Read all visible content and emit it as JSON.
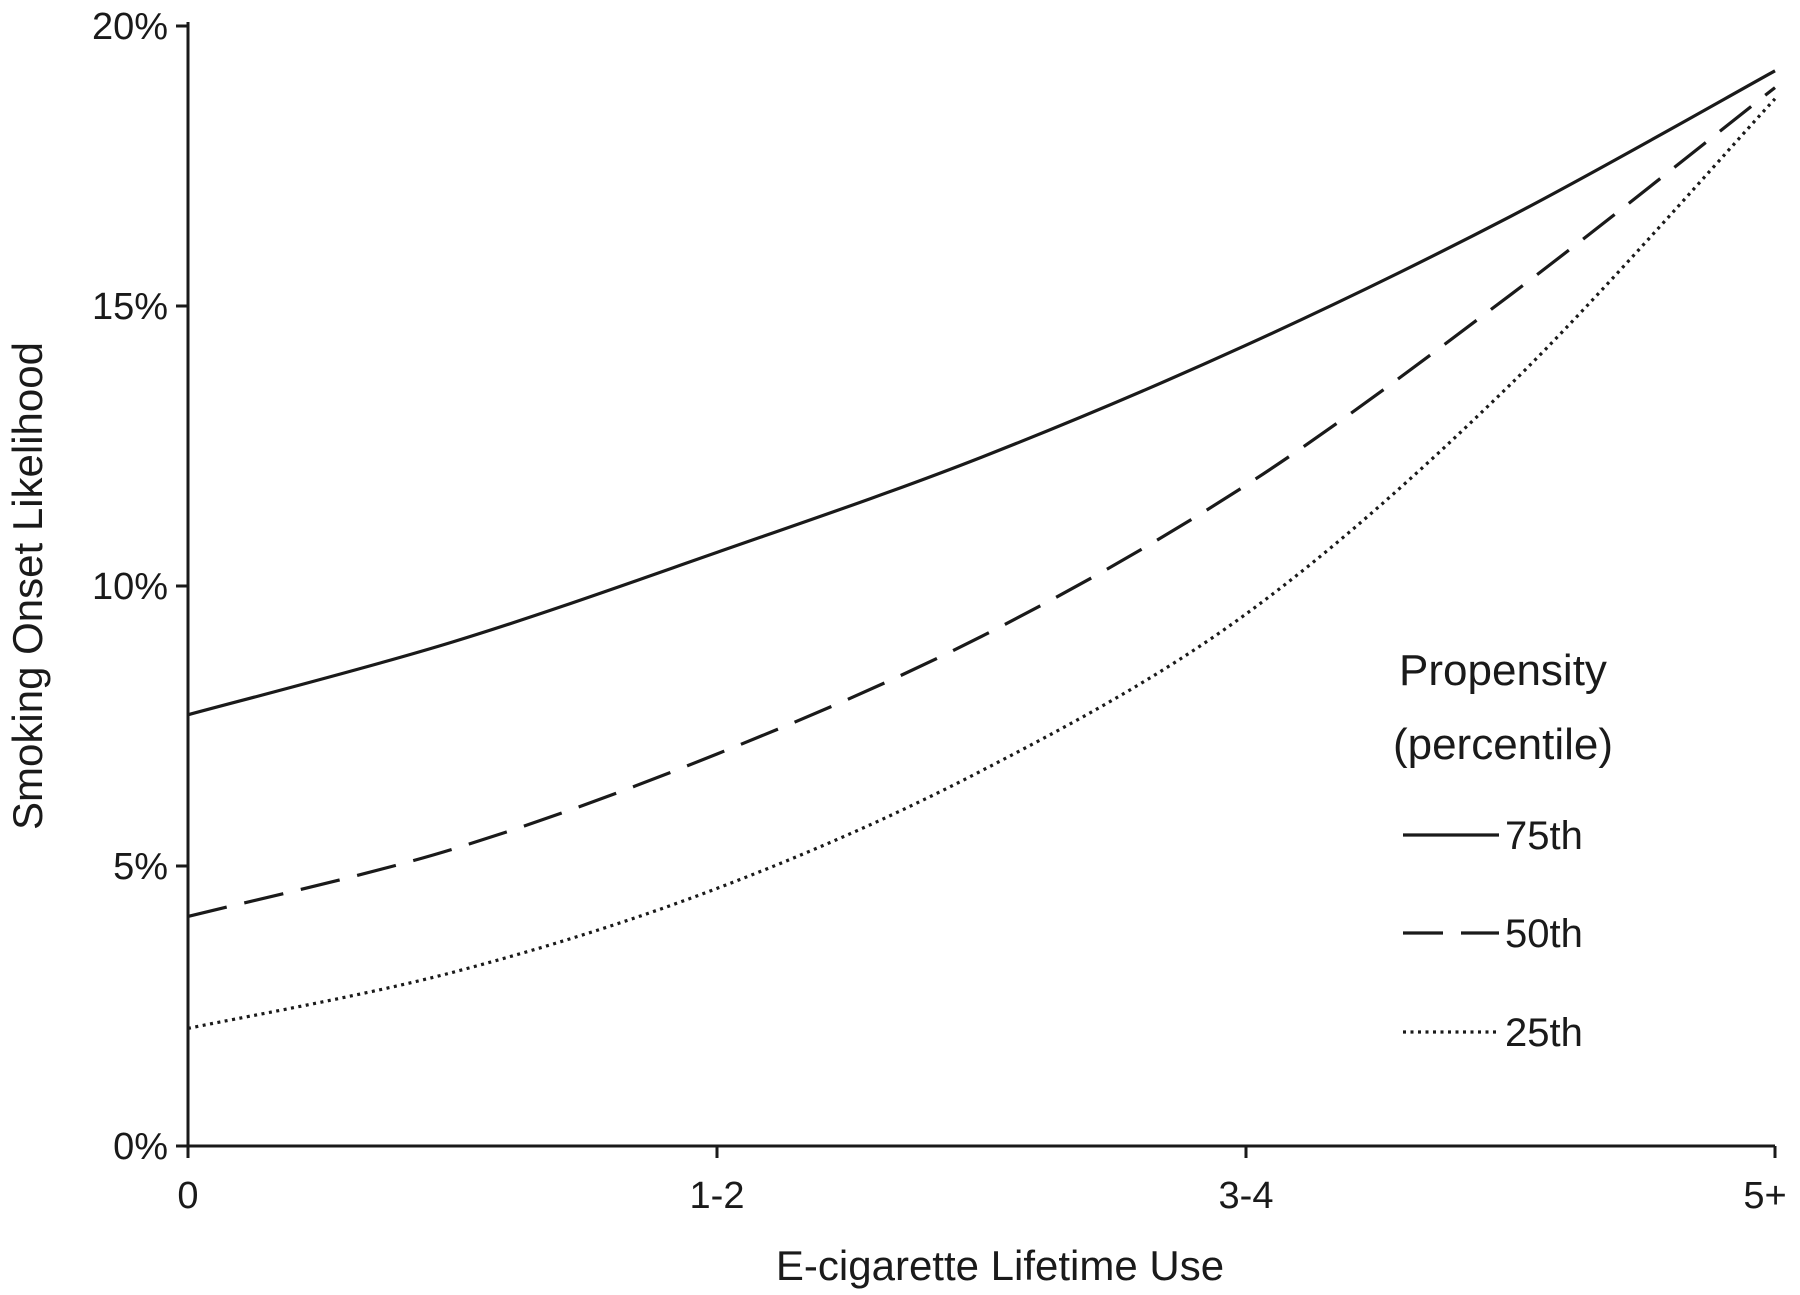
{
  "chart_data": {
    "type": "line",
    "xlabel": "E-cigarette Lifetime Use",
    "ylabel": "Smoking Onset Likelihood",
    "categories": [
      "0",
      "1-2",
      "3-4",
      "5+"
    ],
    "y_ticks": [
      "0%",
      "5%",
      "10%",
      "15%",
      "20%"
    ],
    "ylim": [
      0,
      20
    ],
    "y_unit": "%",
    "grid": false,
    "legend": {
      "title_lines": [
        "Propensity",
        "(percentile)"
      ],
      "placement": "right-center"
    },
    "series": [
      {
        "name": "75th",
        "line_style": "solid",
        "x": [
          0,
          0.5,
          1,
          1.5,
          2,
          2.5,
          3
        ],
        "values": [
          7.7,
          9.0,
          10.6,
          12.3,
          14.3,
          16.6,
          19.2
        ]
      },
      {
        "name": "50th",
        "line_style": "dashed",
        "x": [
          0,
          0.5,
          1,
          1.5,
          2,
          2.5,
          3
        ],
        "values": [
          4.1,
          5.3,
          7.0,
          9.1,
          11.8,
          15.2,
          18.9
        ]
      },
      {
        "name": "25th",
        "line_style": "dotted",
        "x": [
          0,
          0.5,
          1,
          1.5,
          2,
          2.5,
          3
        ],
        "values": [
          2.1,
          3.1,
          4.6,
          6.7,
          9.5,
          13.6,
          18.7
        ]
      }
    ]
  }
}
